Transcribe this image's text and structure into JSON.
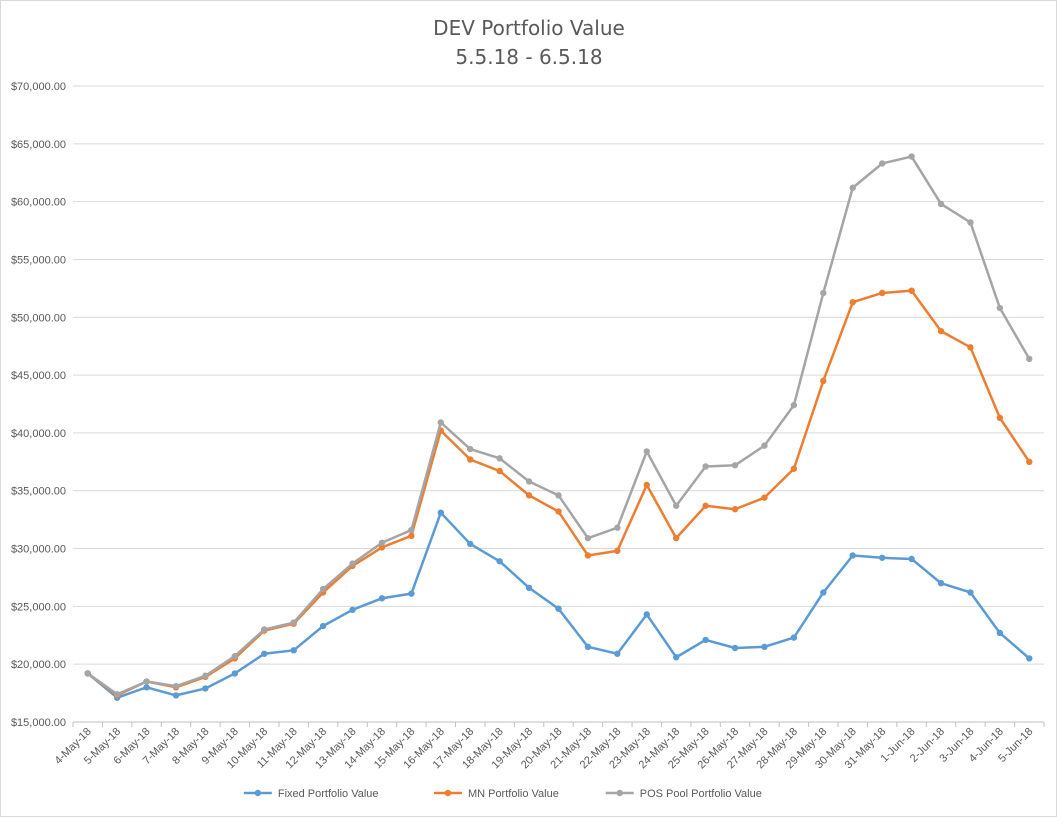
{
  "chart_data": {
    "type": "line",
    "title": "DEV Portfolio Value",
    "subtitle": "5.5.18 - 6.5.18",
    "xlabel": "",
    "ylabel": "",
    "ylim": [
      15000,
      70000
    ],
    "ytick_step": 5000,
    "yticks": [
      "$15,000.00",
      "$20,000.00",
      "$25,000.00",
      "$30,000.00",
      "$35,000.00",
      "$40,000.00",
      "$45,000.00",
      "$50,000.00",
      "$55,000.00",
      "$60,000.00",
      "$65,000.00",
      "$70,000.00"
    ],
    "grid": true,
    "legend_position": "bottom",
    "categories": [
      "4-May-18",
      "5-May-18",
      "6-May-18",
      "7-May-18",
      "8-May-18",
      "9-May-18",
      "10-May-18",
      "11-May-18",
      "12-May-18",
      "13-May-18",
      "14-May-18",
      "15-May-18",
      "16-May-18",
      "17-May-18",
      "18-May-18",
      "19-May-18",
      "20-May-18",
      "21-May-18",
      "22-May-18",
      "23-May-18",
      "24-May-18",
      "25-May-18",
      "26-May-18",
      "27-May-18",
      "28-May-18",
      "29-May-18",
      "30-May-18",
      "31-May-18",
      "1-Jun-18",
      "2-Jun-18",
      "3-Jun-18",
      "4-Jun-18",
      "5-Jun-18"
    ],
    "series": [
      {
        "name": "Fixed Portfolio Value",
        "color": "#5b9bd5",
        "values": [
          19200,
          17100,
          18000,
          17300,
          17900,
          19200,
          20900,
          21200,
          23300,
          24700,
          25700,
          26100,
          33100,
          30400,
          28900,
          26600,
          24800,
          21500,
          20900,
          24300,
          20600,
          22100,
          21400,
          21500,
          22300,
          26200,
          29400,
          29200,
          29100,
          27000,
          26200,
          22700,
          20500
        ]
      },
      {
        "name": "MN Portfolio Value",
        "color": "#ed7d31",
        "values": [
          19200,
          17300,
          18500,
          18000,
          18900,
          20500,
          22900,
          23500,
          26200,
          28500,
          30100,
          31100,
          40200,
          37700,
          36700,
          34600,
          33200,
          29400,
          29800,
          35500,
          30900,
          33700,
          33400,
          34400,
          36900,
          44500,
          51300,
          52100,
          52300,
          48800,
          47400,
          41300,
          37500
        ]
      },
      {
        "name": "POS Pool Portfolio Value",
        "color": "#a5a5a5",
        "values": [
          19200,
          17400,
          18500,
          18100,
          19000,
          20700,
          23000,
          23600,
          26500,
          28700,
          30500,
          31600,
          40900,
          38600,
          37800,
          35800,
          34600,
          30900,
          31800,
          38400,
          33700,
          37100,
          37200,
          38900,
          42400,
          52100,
          61200,
          63300,
          63900,
          59800,
          58200,
          50800,
          46400
        ]
      }
    ]
  }
}
